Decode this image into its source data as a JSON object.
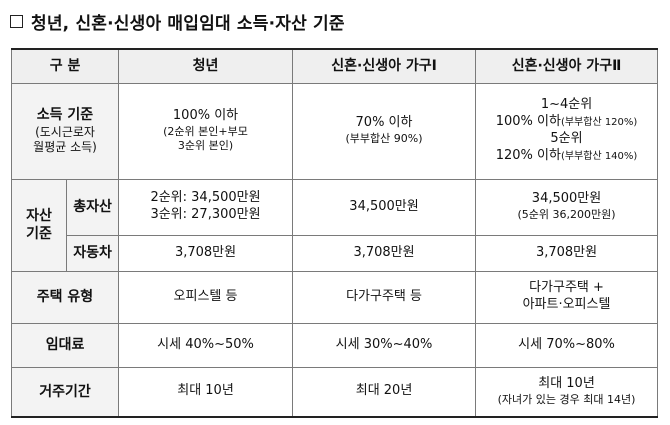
{
  "title": "청년, 신혼·신생아 매입임대 소득·자산 기준",
  "header": {
    "category": "구  분",
    "youth": "청년",
    "type1": "신혼·신생아 가구Ⅰ",
    "type2": "신혼·신생아 가구Ⅱ"
  },
  "income": {
    "label_main": "소득 기준",
    "label_sub1": "(도시근로자",
    "label_sub2": "월평균 소득)",
    "youth_line1": "100% 이하",
    "youth_line2": "(2순위 본인+부모",
    "youth_line3": "3순위 본인)",
    "type1_line1": "70% 이하",
    "type1_line2": "(부부합산 90%)",
    "type2_line1": "1~4순위",
    "type2_line2a": "100% 이하",
    "type2_line2b": "(부부합산 120%)",
    "type2_line3": "5순위",
    "type2_line4a": "120% 이하",
    "type2_line4b": "(부부합산 140%)"
  },
  "assets": {
    "label1": "자산",
    "label2": "기준",
    "total": {
      "label": "총자산",
      "youth_line1": "2순위: 34,500만원",
      "youth_line2": "3순위: 27,300만원",
      "type1": "34,500만원",
      "type2_line1": "34,500만원",
      "type2_line2": "(5순위 36,200만원)"
    },
    "car": {
      "label": "자동차",
      "youth": "3,708만원",
      "type1": "3,708만원",
      "type2": "3,708만원"
    }
  },
  "housing": {
    "label": "주택 유형",
    "youth": "오피스텔 등",
    "type1": "다가구주택 등",
    "type2_line1": "다가구주택 +",
    "type2_line2": "아파트·오피스텔"
  },
  "rent": {
    "label": "임대료",
    "youth": "시세 40%~50%",
    "type1": "시세 30%~40%",
    "type2": "시세 70%~80%"
  },
  "residence": {
    "label": "거주기간",
    "youth": "최대 10년",
    "type1": "최대 20년",
    "type2_line1": "최대 10년",
    "type2_line2": "(자녀가 있는 경우 최대 14년)"
  }
}
